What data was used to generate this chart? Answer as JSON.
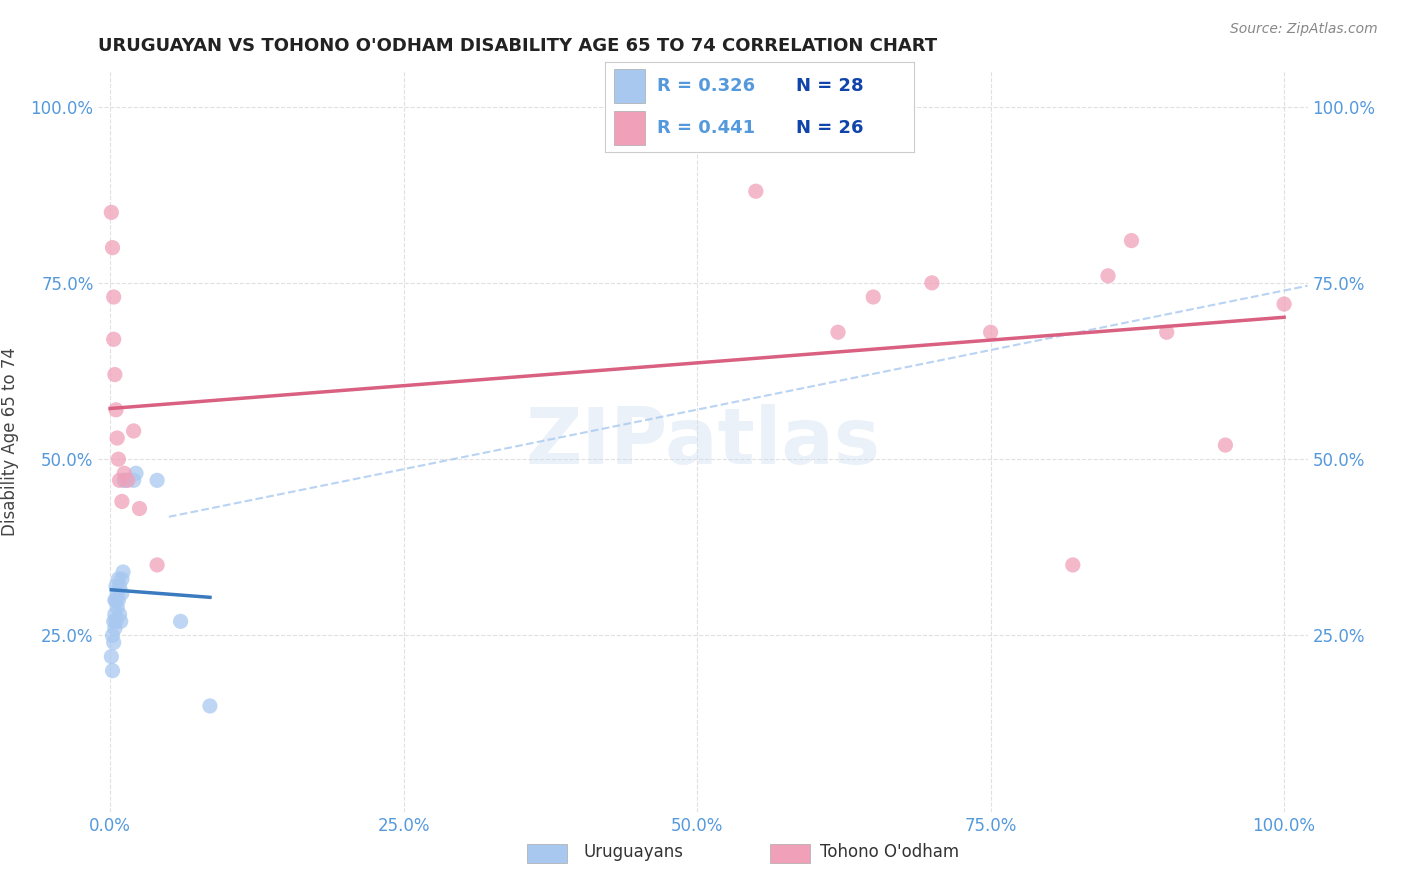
{
  "title": "URUGUAYAN VS TOHONO O'ODHAM DISABILITY AGE 65 TO 74 CORRELATION CHART",
  "source": "Source: ZipAtlas.com",
  "ylabel": "Disability Age 65 to 74",
  "watermark": "ZIPatlas",
  "uruguayan_R": 0.326,
  "uruguayan_N": 28,
  "tohono_R": 0.441,
  "tohono_N": 26,
  "uruguayan_color": "#a8c8f0",
  "tohono_color": "#f0a0b8",
  "trend_uruguayan_color": "#3a7abf",
  "trend_tohono_color": "#d96080",
  "dashed_color": "#a8c8f0",
  "background_color": "#ffffff",
  "grid_color": "#dddddd",
  "title_color": "#222222",
  "axis_tick_color": "#5599dd",
  "legend_r_color": "#5599dd",
  "legend_n_color": "#1144aa",
  "uruguayan_x": [
    0.001,
    0.002,
    0.002,
    0.003,
    0.003,
    0.004,
    0.004,
    0.004,
    0.005,
    0.005,
    0.005,
    0.006,
    0.006,
    0.007,
    0.007,
    0.008,
    0.008,
    0.009,
    0.01,
    0.01,
    0.011,
    0.012,
    0.013,
    0.02,
    0.022,
    0.04,
    0.06,
    0.085
  ],
  "uruguayan_y": [
    0.22,
    0.2,
    0.25,
    0.24,
    0.27,
    0.26,
    0.28,
    0.3,
    0.27,
    0.3,
    0.32,
    0.29,
    0.31,
    0.3,
    0.33,
    0.28,
    0.32,
    0.27,
    0.31,
    0.33,
    0.34,
    0.47,
    0.47,
    0.47,
    0.48,
    0.47,
    0.27,
    0.15
  ],
  "tohono_x": [
    0.001,
    0.002,
    0.003,
    0.003,
    0.004,
    0.005,
    0.006,
    0.007,
    0.008,
    0.01,
    0.012,
    0.015,
    0.02,
    0.025,
    0.04,
    0.55,
    0.62,
    0.65,
    0.7,
    0.75,
    0.82,
    0.85,
    0.87,
    0.9,
    0.95,
    1.0
  ],
  "tohono_y": [
    0.85,
    0.8,
    0.73,
    0.67,
    0.62,
    0.57,
    0.53,
    0.5,
    0.47,
    0.44,
    0.48,
    0.47,
    0.54,
    0.43,
    0.35,
    0.88,
    0.68,
    0.73,
    0.75,
    0.68,
    0.35,
    0.76,
    0.81,
    0.68,
    0.52,
    0.72
  ],
  "xlim": [
    -0.01,
    1.02
  ],
  "ylim": [
    0.0,
    1.05
  ],
  "xticks": [
    0.0,
    0.25,
    0.5,
    0.75,
    1.0
  ],
  "xticklabels": [
    "0.0%",
    "25.0%",
    "50.0%",
    "75.0%",
    "100.0%"
  ],
  "yticks": [
    0.25,
    0.5,
    0.75,
    1.0
  ],
  "yticklabels": [
    "25.0%",
    "50.0%",
    "75.0%",
    "100.0%"
  ]
}
